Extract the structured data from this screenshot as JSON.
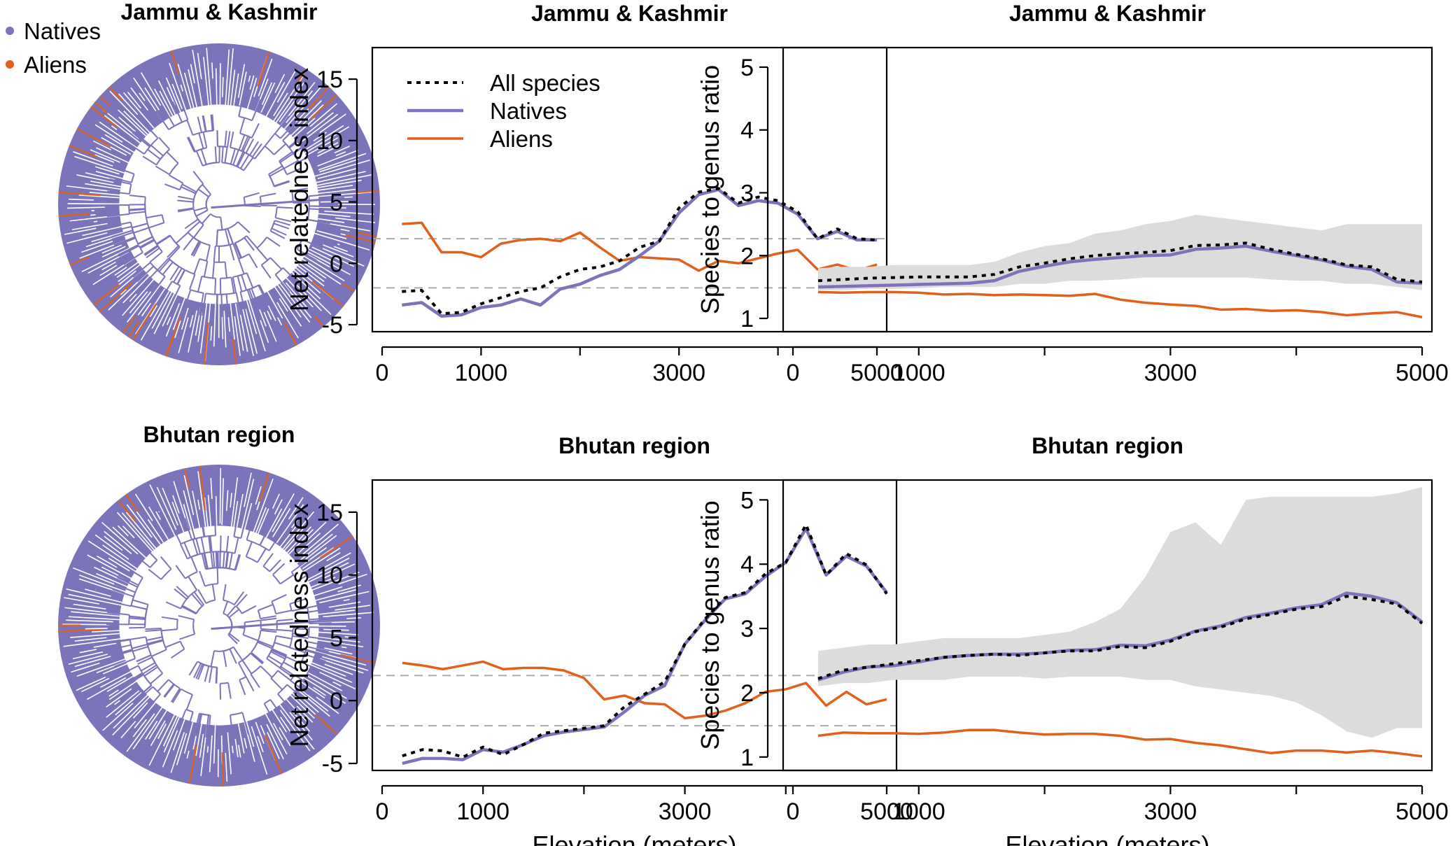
{
  "colors": {
    "natives": "#7b74bb",
    "aliens": "#e0611c",
    "all_species": "#000000",
    "ribbon": "#dcdcdc",
    "ref_line": "#aaaaaa"
  },
  "tree_legend": [
    {
      "label": "Natives",
      "color": "#7b74bb"
    },
    {
      "label": "Aliens",
      "color": "#e0611c"
    }
  ],
  "trees": [
    {
      "title": "Jammu & Kashmir",
      "alien_share": 0.12
    },
    {
      "title": "Bhutan region",
      "alien_share": 0.05
    }
  ],
  "chart_data": [
    {
      "type": "line",
      "title": "Jammu & Kashmir",
      "xlabel": "",
      "ylabel": "Net relatedness index",
      "xlim": [
        0,
        5000
      ],
      "ylim": [
        -5,
        17
      ],
      "xticks": [
        0,
        1000,
        3000,
        5000
      ],
      "xticks_minor": [
        2000,
        4000
      ],
      "yticks": [
        -5,
        0,
        5,
        10,
        15
      ],
      "reference_lines": [
        2,
        -2
      ],
      "legend": {
        "position": "top-left",
        "entries": [
          "All species",
          "Natives",
          "Aliens"
        ]
      },
      "series": [
        {
          "name": "All species",
          "style": "dotted",
          "x": [
            200,
            400,
            600,
            800,
            1000,
            1200,
            1400,
            1600,
            1800,
            2000,
            2200,
            2400,
            2600,
            2800,
            3000,
            3200,
            3400,
            3600,
            3800,
            4000,
            4200,
            4400,
            4600,
            4800,
            5000
          ],
          "y": [
            -2.3,
            -2.2,
            -4.1,
            -4.0,
            -3.3,
            -2.8,
            -2.3,
            -2.0,
            -1.1,
            -0.5,
            -0.3,
            0.2,
            1.3,
            1.8,
            4.5,
            5.8,
            6.1,
            4.9,
            5.4,
            5.1,
            4.2,
            2.0,
            2.8,
            2.0,
            1.9
          ]
        },
        {
          "name": "Natives",
          "style": "solid",
          "x": [
            200,
            400,
            600,
            800,
            1000,
            1200,
            1400,
            1600,
            1800,
            2000,
            2200,
            2400,
            2600,
            2800,
            3000,
            3200,
            3400,
            3600,
            3800,
            4000,
            4200,
            4400,
            4600,
            4800,
            5000
          ],
          "y": [
            -3.4,
            -3.2,
            -4.3,
            -4.2,
            -3.6,
            -3.4,
            -2.9,
            -3.4,
            -2.1,
            -1.7,
            -1.0,
            -0.5,
            0.6,
            1.8,
            4.1,
            5.6,
            6.0,
            4.7,
            5.1,
            4.9,
            4.0,
            2.0,
            2.6,
            1.9,
            1.9
          ]
        },
        {
          "name": "Aliens",
          "style": "solid",
          "x": [
            200,
            400,
            600,
            800,
            1000,
            1200,
            1400,
            1600,
            1800,
            2000,
            2200,
            2400,
            2600,
            2800,
            3000,
            3200,
            3400,
            3600,
            3800,
            4000,
            4200,
            4400,
            4600,
            4800,
            5000
          ],
          "y": [
            3.2,
            3.3,
            0.9,
            0.9,
            0.5,
            1.6,
            1.9,
            2.0,
            1.8,
            2.5,
            1.3,
            0.2,
            0.5,
            0.4,
            0.3,
            -0.6,
            0.2,
            0.0,
            0.4,
            0.8,
            1.1,
            -0.5,
            -0.1,
            -0.6,
            -0.1
          ]
        }
      ]
    },
    {
      "type": "line",
      "title": "Jammu & Kashmir",
      "xlabel": "",
      "ylabel": "Species to genus ratio",
      "xlim": [
        0,
        5000
      ],
      "ylim": [
        0.9,
        5.2
      ],
      "xticks": [
        0,
        1000,
        3000,
        5000
      ],
      "xticks_minor": [
        2000,
        4000
      ],
      "yticks": [
        1,
        2,
        3,
        4,
        5
      ],
      "ribbon": {
        "x": [
          200,
          400,
          600,
          800,
          1000,
          1200,
          1400,
          1600,
          1800,
          2000,
          2200,
          2400,
          2600,
          2800,
          3000,
          3200,
          3400,
          3600,
          3800,
          4000,
          4200,
          4400,
          4600,
          4800,
          5000
        ],
        "lower": [
          1.45,
          1.45,
          1.47,
          1.47,
          1.48,
          1.5,
          1.5,
          1.5,
          1.55,
          1.55,
          1.6,
          1.6,
          1.62,
          1.65,
          1.65,
          1.65,
          1.65,
          1.65,
          1.62,
          1.6,
          1.6,
          1.55,
          1.55,
          1.5,
          1.45
        ],
        "upper": [
          1.8,
          1.82,
          1.82,
          1.85,
          1.85,
          1.85,
          1.85,
          1.9,
          2.05,
          2.15,
          2.2,
          2.35,
          2.4,
          2.5,
          2.55,
          2.65,
          2.6,
          2.55,
          2.5,
          2.45,
          2.4,
          2.5,
          2.5,
          2.5,
          2.5
        ]
      },
      "series": [
        {
          "name": "All species",
          "style": "dotted",
          "x": [
            200,
            400,
            600,
            800,
            1000,
            1200,
            1400,
            1600,
            1800,
            2000,
            2200,
            2400,
            2600,
            2800,
            3000,
            3200,
            3400,
            3600,
            3800,
            4000,
            4200,
            4400,
            4600,
            4800,
            5000
          ],
          "y": [
            1.6,
            1.62,
            1.64,
            1.65,
            1.66,
            1.66,
            1.66,
            1.7,
            1.82,
            1.88,
            1.95,
            2.0,
            2.03,
            2.05,
            2.08,
            2.16,
            2.17,
            2.2,
            2.1,
            2.02,
            1.95,
            1.85,
            1.82,
            1.62,
            1.58
          ]
        },
        {
          "name": "Natives",
          "style": "solid",
          "x": [
            200,
            400,
            600,
            800,
            1000,
            1200,
            1400,
            1600,
            1800,
            2000,
            2200,
            2400,
            2600,
            2800,
            3000,
            3200,
            3400,
            3600,
            3800,
            4000,
            4200,
            4400,
            4600,
            4800,
            5000
          ],
          "y": [
            1.5,
            1.51,
            1.52,
            1.53,
            1.54,
            1.55,
            1.56,
            1.6,
            1.75,
            1.83,
            1.9,
            1.94,
            1.97,
            2.0,
            2.01,
            2.1,
            2.12,
            2.15,
            2.07,
            2.0,
            1.93,
            1.83,
            1.78,
            1.58,
            1.56
          ]
        },
        {
          "name": "Aliens",
          "style": "solid",
          "x": [
            200,
            400,
            600,
            800,
            1000,
            1200,
            1400,
            1600,
            1800,
            2000,
            2200,
            2400,
            2600,
            2800,
            3000,
            3200,
            3400,
            3600,
            3800,
            4000,
            4200,
            4400,
            4600,
            4800,
            5000
          ],
          "y": [
            1.42,
            1.41,
            1.42,
            1.42,
            1.41,
            1.38,
            1.39,
            1.37,
            1.38,
            1.37,
            1.36,
            1.39,
            1.3,
            1.25,
            1.22,
            1.2,
            1.14,
            1.15,
            1.12,
            1.13,
            1.1,
            1.05,
            1.08,
            1.1,
            1.02
          ]
        }
      ]
    },
    {
      "type": "line",
      "title": "Bhutan region",
      "xlabel": "Elevation (meters)",
      "ylabel": "Net relatedness index",
      "xlim": [
        0,
        5000
      ],
      "ylim": [
        -5,
        17
      ],
      "xticks": [
        0,
        1000,
        3000,
        5000
      ],
      "xticks_minor": [
        2000,
        4000
      ],
      "yticks": [
        -5,
        0,
        5,
        10,
        15
      ],
      "reference_lines": [
        2,
        -2
      ],
      "series": [
        {
          "name": "All species",
          "style": "dotted",
          "x": [
            200,
            400,
            600,
            800,
            1000,
            1200,
            1400,
            1600,
            1800,
            2000,
            2200,
            2400,
            2600,
            2800,
            3000,
            3200,
            3400,
            3600,
            3800,
            4000,
            4200,
            4400,
            4600,
            4800,
            5000
          ],
          "y": [
            -4.4,
            -3.9,
            -4.0,
            -4.5,
            -3.7,
            -4.3,
            -3.5,
            -2.6,
            -2.4,
            -2.2,
            -2.0,
            -0.5,
            0.5,
            1.5,
            4.5,
            6.5,
            8.2,
            8.6,
            10.1,
            11.0,
            14.0,
            10.0,
            11.7,
            10.8,
            8.5
          ]
        },
        {
          "name": "Natives",
          "style": "solid",
          "x": [
            200,
            400,
            600,
            800,
            1000,
            1200,
            1400,
            1600,
            1800,
            2000,
            2200,
            2400,
            2600,
            2800,
            3000,
            3200,
            3400,
            3600,
            3800,
            4000,
            4200,
            4400,
            4600,
            4800,
            5000
          ],
          "y": [
            -5.0,
            -4.6,
            -4.6,
            -4.7,
            -3.9,
            -4.1,
            -3.5,
            -2.8,
            -2.5,
            -2.3,
            -2.1,
            -0.9,
            0.4,
            1.2,
            4.5,
            6.4,
            8.1,
            8.5,
            9.9,
            11.0,
            13.7,
            10.0,
            11.5,
            10.7,
            8.6
          ]
        },
        {
          "name": "Aliens",
          "style": "solid",
          "x": [
            200,
            400,
            600,
            800,
            1000,
            1200,
            1400,
            1600,
            1800,
            2000,
            2200,
            2400,
            2600,
            2800,
            3000,
            3200,
            3400,
            3600,
            3800,
            4000,
            4200,
            4400,
            4600,
            4800,
            5000
          ],
          "y": [
            3.0,
            2.8,
            2.5,
            2.8,
            3.1,
            2.5,
            2.6,
            2.6,
            2.4,
            1.8,
            0.1,
            0.4,
            -0.2,
            -0.3,
            -1.4,
            -1.2,
            -0.8,
            -0.2,
            0.7,
            0.9,
            1.4,
            -0.4,
            0.7,
            -0.3,
            0.1
          ]
        }
      ]
    },
    {
      "type": "line",
      "title": "Bhutan region",
      "xlabel": "Elevation (meters)",
      "ylabel": "Species to genus ratio",
      "xlim": [
        0,
        5000
      ],
      "ylim": [
        0.9,
        5.2
      ],
      "xticks": [
        0,
        1000,
        3000,
        5000
      ],
      "xticks_minor": [
        2000,
        4000
      ],
      "yticks": [
        1,
        2,
        3,
        4,
        5
      ],
      "ribbon": {
        "x": [
          200,
          400,
          600,
          800,
          1000,
          1200,
          1400,
          1600,
          1800,
          2000,
          2200,
          2400,
          2600,
          2800,
          3000,
          3200,
          3400,
          3600,
          3800,
          4000,
          4200,
          4400,
          4600,
          4800,
          5000
        ],
        "lower": [
          2.1,
          2.15,
          2.15,
          2.2,
          2.2,
          2.2,
          2.25,
          2.25,
          2.25,
          2.22,
          2.25,
          2.25,
          2.25,
          2.2,
          2.2,
          2.1,
          2.05,
          2.0,
          1.95,
          1.85,
          1.65,
          1.4,
          1.3,
          1.45,
          1.45
        ],
        "upper": [
          2.65,
          2.7,
          2.75,
          2.75,
          2.8,
          2.85,
          2.85,
          2.85,
          2.85,
          2.9,
          2.95,
          3.1,
          3.3,
          3.8,
          4.5,
          4.65,
          4.3,
          5.0,
          5.05,
          5.05,
          5.05,
          5.05,
          5.05,
          5.1,
          5.2
        ]
      },
      "series": [
        {
          "name": "All species",
          "style": "dotted",
          "x": [
            200,
            400,
            600,
            800,
            1000,
            1200,
            1400,
            1600,
            1800,
            2000,
            2200,
            2400,
            2600,
            2800,
            3000,
            3200,
            3400,
            3600,
            3800,
            4000,
            4200,
            4400,
            4600,
            4800,
            5000
          ],
          "y": [
            2.22,
            2.35,
            2.4,
            2.45,
            2.5,
            2.55,
            2.58,
            2.6,
            2.58,
            2.62,
            2.65,
            2.65,
            2.72,
            2.7,
            2.8,
            2.95,
            3.02,
            3.15,
            3.22,
            3.3,
            3.34,
            3.5,
            3.45,
            3.38,
            3.08
          ]
        },
        {
          "name": "Natives",
          "style": "solid",
          "x": [
            200,
            400,
            600,
            800,
            1000,
            1200,
            1400,
            1600,
            1800,
            2000,
            2200,
            2400,
            2600,
            2800,
            3000,
            3200,
            3400,
            3600,
            3800,
            4000,
            4200,
            4400,
            4600,
            4800,
            5000
          ],
          "y": [
            2.2,
            2.32,
            2.4,
            2.42,
            2.48,
            2.55,
            2.58,
            2.6,
            2.6,
            2.62,
            2.66,
            2.67,
            2.74,
            2.73,
            2.82,
            2.96,
            3.04,
            3.17,
            3.24,
            3.32,
            3.37,
            3.55,
            3.5,
            3.4,
            3.1
          ]
        },
        {
          "name": "Aliens",
          "style": "solid",
          "x": [
            200,
            400,
            600,
            800,
            1000,
            1200,
            1400,
            1600,
            1800,
            2000,
            2200,
            2400,
            2600,
            2800,
            3000,
            3200,
            3400,
            3600,
            3800,
            4000,
            4200,
            4400,
            4600,
            4800,
            5000
          ],
          "y": [
            1.33,
            1.38,
            1.37,
            1.37,
            1.36,
            1.38,
            1.42,
            1.42,
            1.38,
            1.35,
            1.36,
            1.36,
            1.33,
            1.27,
            1.28,
            1.22,
            1.18,
            1.12,
            1.06,
            1.1,
            1.1,
            1.07,
            1.1,
            1.06,
            1.01
          ]
        }
      ]
    }
  ]
}
